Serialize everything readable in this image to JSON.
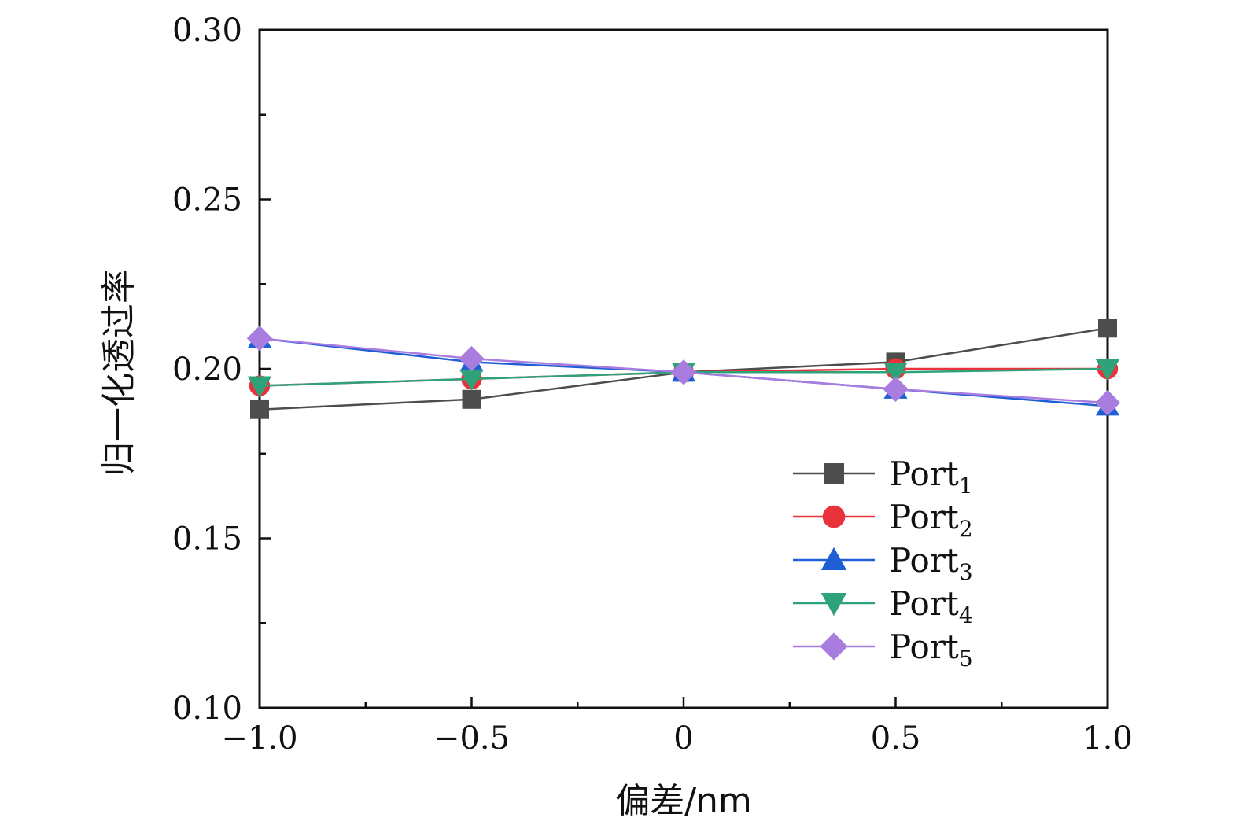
{
  "chart_data": {
    "type": "line",
    "title": "",
    "xlabel": "偏差/nm",
    "ylabel": "归一化透过率",
    "xlim": [
      -1.0,
      1.0
    ],
    "ylim": [
      0.1,
      0.3
    ],
    "x": [
      -1.0,
      -0.5,
      0,
      0.5,
      1.0
    ],
    "x_tick_labels": [
      "−1.0",
      "−0.5",
      "0",
      "0.5",
      "1.0"
    ],
    "y_ticks": [
      0.1,
      0.15,
      0.2,
      0.25,
      0.3
    ],
    "y_tick_labels": [
      "0.10",
      "0.15",
      "0.20",
      "0.25",
      "0.30"
    ],
    "grid": false,
    "legend_position": "bottom-right",
    "series": [
      {
        "name": "Port",
        "sub": "1",
        "marker": "square",
        "color": "#4d4d4d",
        "values": [
          0.188,
          0.191,
          0.199,
          0.202,
          0.212
        ]
      },
      {
        "name": "Port",
        "sub": "2",
        "marker": "circle",
        "color": "#e8333c",
        "values": [
          0.195,
          0.197,
          0.199,
          0.2,
          0.2
        ]
      },
      {
        "name": "Port",
        "sub": "3",
        "marker": "triangle-up",
        "color": "#1f5fd6",
        "values": [
          0.209,
          0.202,
          0.199,
          0.194,
          0.189
        ]
      },
      {
        "name": "Port",
        "sub": "4",
        "marker": "triangle-down",
        "color": "#2ea37a",
        "values": [
          0.195,
          0.197,
          0.199,
          0.199,
          0.2
        ]
      },
      {
        "name": "Port",
        "sub": "5",
        "marker": "diamond",
        "color": "#a97de0",
        "values": [
          0.209,
          0.203,
          0.199,
          0.194,
          0.19
        ]
      }
    ]
  }
}
